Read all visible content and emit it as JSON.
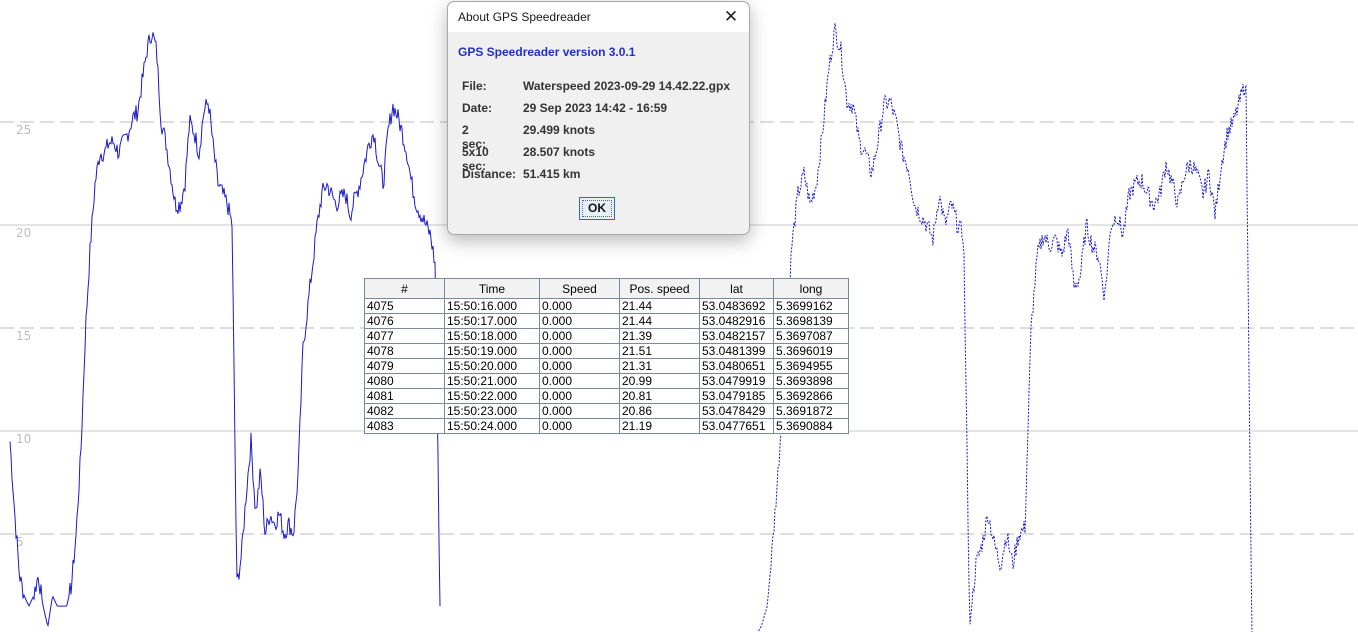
{
  "colors": {
    "line": "#1a1acc",
    "grid_solid": "#c8c8c8",
    "grid_dashed": "#bdbdbd",
    "axis_label": "#bdbdbd",
    "dialog_version": "#1f2fcf"
  },
  "chart_data": {
    "type": "line",
    "title": "",
    "xlabel": "",
    "ylabel": "",
    "ylim": [
      0,
      30
    ],
    "yticks": [
      "25",
      "20",
      "15",
      "10",
      "5"
    ],
    "grid": "horizontal (solid at 10 and 20, dashed at 5, 15, 25)",
    "series": [
      {
        "line_style": "solid",
        "values": [
          9.5,
          6,
          3,
          2,
          1.5,
          2,
          3,
          1.5,
          0.5,
          2,
          1.5,
          1.5,
          1.5,
          2.5,
          5,
          9,
          15,
          19,
          22,
          23.5,
          23.5,
          24,
          24,
          23.5,
          24,
          24.5,
          25.2,
          25.5,
          27,
          28.5,
          29.4,
          28.5,
          25,
          24,
          22.5,
          21,
          21,
          22,
          25,
          24.5,
          23.5,
          25.5,
          26,
          23.8,
          22,
          21.5,
          21,
          20,
          2.5,
          4,
          7,
          9.5,
          6,
          8,
          5,
          6,
          5.5,
          6,
          5,
          5.5,
          5,
          8,
          14,
          16,
          18,
          20,
          21.5,
          22,
          21.5,
          21,
          21.3,
          21.5,
          20.5,
          21.3,
          22,
          23,
          24,
          24.5,
          23,
          22,
          24.5,
          25.8,
          25.3,
          24.5,
          23.5,
          22,
          21,
          20.5,
          20,
          19.5,
          18,
          1.5
        ]
      },
      {
        "line_style": "dotted",
        "values": [
          0,
          0.5,
          1.5,
          5,
          9,
          14,
          19,
          21.5,
          22.5,
          21,
          22,
          24.5,
          27.5,
          29.5,
          28.5,
          26,
          25.8,
          24,
          23.5,
          22.5,
          24,
          25.8,
          26,
          25,
          23.5,
          22.8,
          21,
          20.5,
          20,
          19.3,
          21.5,
          20,
          21,
          20,
          19.5,
          0.5,
          3.5,
          4.5,
          6,
          4.5,
          3.5,
          5,
          3.5,
          5,
          5.3,
          15,
          18.5,
          19.5,
          19,
          19.3,
          18.5,
          19.8,
          17,
          17.5,
          20,
          19,
          18.5,
          16.5,
          20,
          20.5,
          19.5,
          21.5,
          22,
          22.2,
          21.5,
          21,
          21.5,
          23,
          22,
          21,
          22.5,
          23,
          22.5,
          21.5,
          22.5,
          20.5,
          23,
          24.5,
          25,
          26,
          27,
          0
        ]
      }
    ]
  },
  "dialog": {
    "title": "About GPS Speedreader",
    "version": "GPS Speedreader version 3.0.1",
    "rows": [
      {
        "key": "File:",
        "value": "Waterspeed 2023-09-29 14.42.22.gpx"
      },
      {
        "key": "Date:",
        "value": "29 Sep 2023 14:42 - 16:59"
      },
      {
        "key": "2 sec:",
        "value": "29.499 knots"
      },
      {
        "key": "5x10 sec:",
        "value": "28.507 knots"
      },
      {
        "key": "Distance:",
        "value": "51.415 km"
      }
    ],
    "ok_label": "OK",
    "close_icon": "close-icon"
  },
  "table": {
    "headers": [
      "#",
      "Time",
      "Speed",
      "Pos. speed",
      "lat",
      "long"
    ],
    "rows": [
      [
        "4075",
        "15:50:16.000",
        "0.000",
        "21.44",
        "53.0483692",
        "5.3699162"
      ],
      [
        "4076",
        "15:50:17.000",
        "0.000",
        "21.44",
        "53.0482916",
        "5.3698139"
      ],
      [
        "4077",
        "15:50:18.000",
        "0.000",
        "21.39",
        "53.0482157",
        "5.3697087"
      ],
      [
        "4078",
        "15:50:19.000",
        "0.000",
        "21.51",
        "53.0481399",
        "5.3696019"
      ],
      [
        "4079",
        "15:50:20.000",
        "0.000",
        "21.31",
        "53.0480651",
        "5.3694955"
      ],
      [
        "4080",
        "15:50:21.000",
        "0.000",
        "20.99",
        "53.0479919",
        "5.3693898"
      ],
      [
        "4081",
        "15:50:22.000",
        "0.000",
        "20.81",
        "53.0479185",
        "5.3692866"
      ],
      [
        "4082",
        "15:50:23.000",
        "0.000",
        "20.86",
        "53.0478429",
        "5.3691872"
      ],
      [
        "4083",
        "15:50:24.000",
        "0.000",
        "21.19",
        "53.0477651",
        "5.3690884"
      ]
    ]
  }
}
